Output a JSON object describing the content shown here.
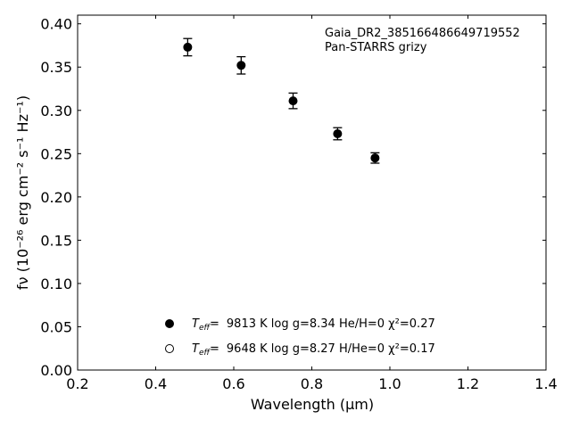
{
  "chart_data": {
    "type": "scatter",
    "title": "",
    "xlabel": "Wavelength (μm)",
    "ylabel": "fν (10⁻²⁶ erg cm⁻² s⁻¹ Hz⁻¹)",
    "xlim": [
      0.2,
      1.4
    ],
    "ylim": [
      0.0,
      0.41
    ],
    "xticks": [
      "0.2",
      "0.4",
      "0.6",
      "0.8",
      "1.0",
      "1.2",
      "1.4"
    ],
    "yticks": [
      "0.00",
      "0.05",
      "0.10",
      "0.15",
      "0.20",
      "0.25",
      "0.30",
      "0.35",
      "0.40"
    ],
    "grid": false,
    "annotations": [
      "Gaia_DR2_385166486649719552",
      "Pan-STARRS grizy"
    ],
    "legend": {
      "placement": "lower-center",
      "entries": [
        {
          "marker": "filled-circle",
          "label": "9813 K  log g=8.34  He/H=0  χ²=0.27"
        },
        {
          "marker": "open-circle",
          "label": "9648 K  log g=8.27  H/He=0  χ²=0.17"
        }
      ],
      "teff_symbol": "T",
      "teff_sub": "eff",
      "equals": "="
    },
    "series": [
      {
        "marker": "filled-circle",
        "color": "#000000",
        "x": [
          0.482,
          0.619,
          0.752,
          0.866,
          0.962
        ],
        "y": [
          0.373,
          0.352,
          0.311,
          0.273,
          0.245
        ],
        "yerr": [
          0.01,
          0.01,
          0.009,
          0.007,
          0.006
        ]
      }
    ]
  }
}
